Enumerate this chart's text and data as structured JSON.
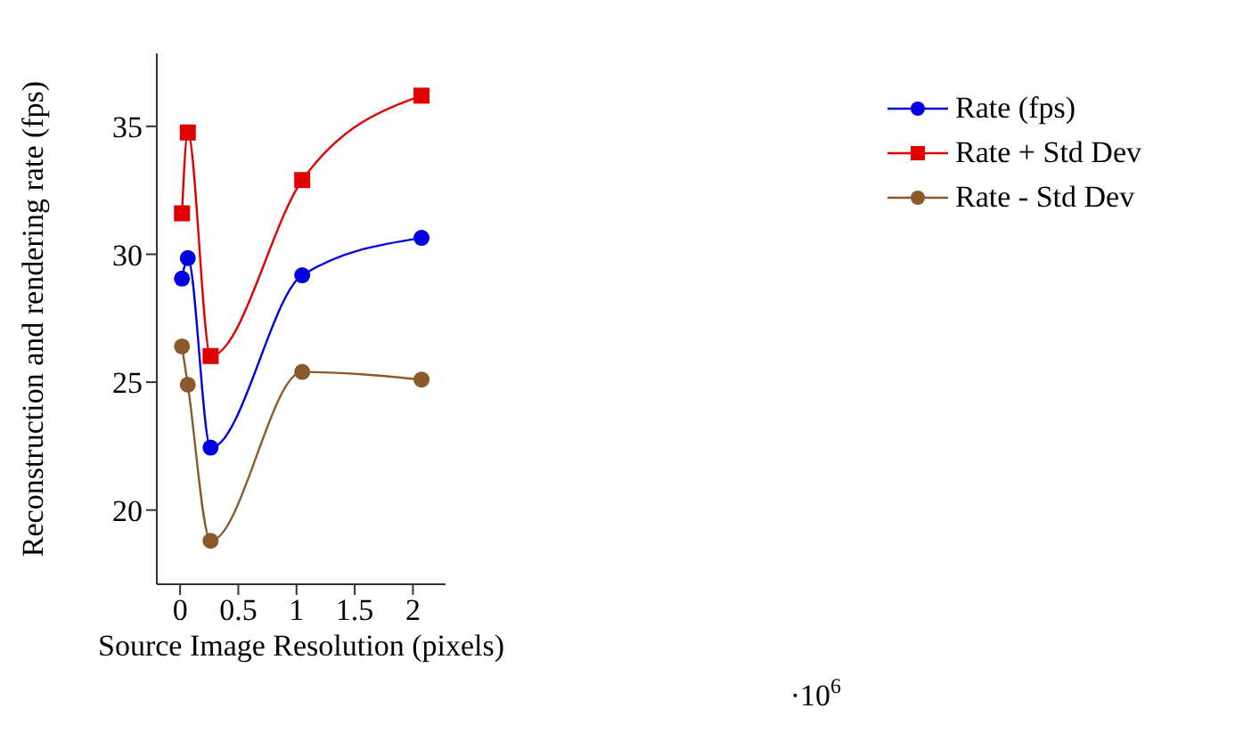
{
  "chart_data": {
    "type": "line",
    "xlabel": "Source Image Resolution (pixels)",
    "ylabel": "Reconstruction and rendering rate (fps)",
    "annotations": [
      "·10$^{6}$"
    ],
    "xlim": [
      -0.2,
      2.28
    ],
    "xticks": [
      0,
      0.5,
      1,
      1.5,
      2
    ],
    "ylim": [
      17.1,
      37.85
    ],
    "yticks": [
      20,
      25,
      30,
      35
    ],
    "x": [
      0.016,
      0.066,
      0.262,
      1.049,
      2.074
    ],
    "series": [
      {
        "name": "Rate (fps)",
        "color": "#0000e0",
        "marker": "circle",
        "values": [
          29.05,
          29.85,
          22.44,
          29.18,
          30.64
        ]
      },
      {
        "name": "Rate + Std Dev",
        "color": "#e00000",
        "marker": "square",
        "values": [
          31.6,
          34.76,
          26.02,
          32.9,
          36.2
        ]
      },
      {
        "name": "Rate - Std Dev",
        "color": "#8b5a2b",
        "marker": "circle",
        "values": [
          26.4,
          24.9,
          18.8,
          25.4,
          25.1
        ]
      }
    ],
    "legend": "right",
    "grid": false
  }
}
